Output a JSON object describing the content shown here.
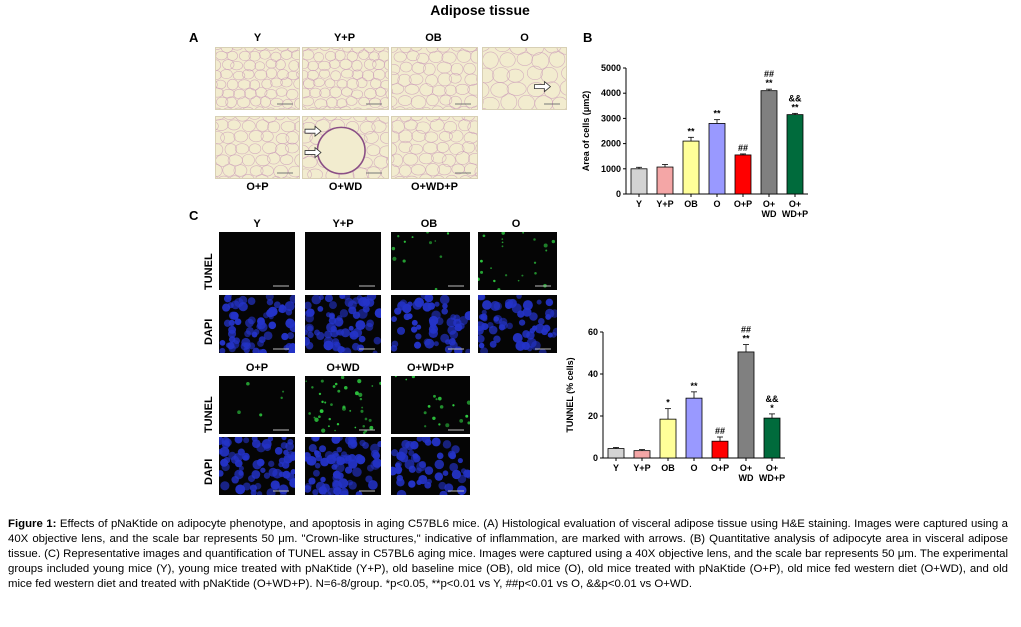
{
  "figure": {
    "title": "Adipose tissue",
    "panels": {
      "a": "A",
      "b": "B",
      "c": "C"
    },
    "he_top_labels": [
      "Y",
      "Y+P",
      "OB",
      "O"
    ],
    "he_bottom_labels": [
      "O+P",
      "O+WD",
      "O+WD+P"
    ],
    "tunel_top_labels": [
      "Y",
      "Y+P",
      "OB",
      "O"
    ],
    "tunel_bottom_labels": [
      "O+P",
      "O+WD",
      "O+WD+P"
    ],
    "row_labels": {
      "tunel": "TUNEL",
      "dapi": "DAPI"
    },
    "colors": {
      "he_background": "#f2eccf",
      "he_membrane": "#c99ab8",
      "tunel_green": "#2ecc40",
      "dapi_blue": "#2433c8"
    }
  },
  "chart_data": [
    {
      "type": "bar",
      "title": "",
      "ylabel": "Area of cells (μm2)",
      "xlabel": "",
      "ylim": [
        0,
        5000
      ],
      "yticks": [
        0,
        1000,
        2000,
        3000,
        4000,
        5000
      ],
      "categories": [
        "Y",
        "Y+P",
        "OB",
        "O",
        "O+P",
        "O+ WD",
        "O+ WD+P"
      ],
      "tick_lines": [
        [
          "Y"
        ],
        [
          "Y+P"
        ],
        [
          "OB"
        ],
        [
          "O"
        ],
        [
          "O+P"
        ],
        [
          "O+",
          "WD"
        ],
        [
          "O+",
          "WD+P"
        ]
      ],
      "values": [
        1000,
        1070,
        2100,
        2800,
        1550,
        4100,
        3150
      ],
      "errors": [
        60,
        100,
        150,
        150,
        40,
        60,
        50
      ],
      "colors": [
        "#d3d3d3",
        "#f4a6a6",
        "#ffff99",
        "#9999ff",
        "#ff0000",
        "#808080",
        "#006b3c"
      ],
      "annotations": [
        [],
        [],
        [
          "**"
        ],
        [
          "**"
        ],
        [
          "##"
        ],
        [
          "##",
          "**"
        ],
        [
          "&&",
          "**"
        ]
      ]
    },
    {
      "type": "bar",
      "title": "",
      "ylabel": "TUNNEL (% cells)",
      "xlabel": "",
      "ylim": [
        0,
        60
      ],
      "yticks": [
        0,
        20,
        40,
        60
      ],
      "categories": [
        "Y",
        "Y+P",
        "OB",
        "O",
        "O+P",
        "O+ WD",
        "O+ WD+P"
      ],
      "tick_lines": [
        [
          "Y"
        ],
        [
          "Y+P"
        ],
        [
          "OB"
        ],
        [
          "O"
        ],
        [
          "O+P"
        ],
        [
          "O+",
          "WD"
        ],
        [
          "O+",
          "WD+P"
        ]
      ],
      "values": [
        4.5,
        3.5,
        18.5,
        28.5,
        8,
        50.5,
        19
      ],
      "errors": [
        0.5,
        0.5,
        5,
        3,
        2,
        3.5,
        2
      ],
      "colors": [
        "#d3d3d3",
        "#f4a6a6",
        "#ffff99",
        "#9999ff",
        "#ff0000",
        "#808080",
        "#006b3c"
      ],
      "annotations": [
        [],
        [],
        [
          "*"
        ],
        [
          "**"
        ],
        [
          "##"
        ],
        [
          "##",
          "**"
        ],
        [
          "&&",
          "*"
        ]
      ]
    }
  ],
  "caption": {
    "label": "Figure 1:",
    "text": " Effects of pNaKtide on adipocyte phenotype, and apoptosis in aging C57BL6 mice. (A) Histological evaluation of visceral adipose tissue using H&E staining. Images were captured using a 40X objective lens, and the scale bar represents 50 μm. \"Crown-like structures,\" indicative of inflammation, are marked with arrows. (B) Quantitative analysis of adipocyte area in visceral adipose tissue. (C) Representative images and quantification of TUNEL assay in C57BL6 aging mice. Images were captured using a 40X objective lens, and the scale bar represents 50 μm. The experimental groups included young mice (Y), young mice treated with pNaKtide (Y+P), old baseline mice (OB), old mice (O), old mice treated with pNaKtide (O+P), old mice fed western diet (O+WD), and old mice fed western diet and treated with pNaKtide (O+WD+P). N=6-8/group. *p<0.05, **p<0.01 vs Y, ##p<0.01 vs O, &&p<0.01 vs O+WD."
  }
}
